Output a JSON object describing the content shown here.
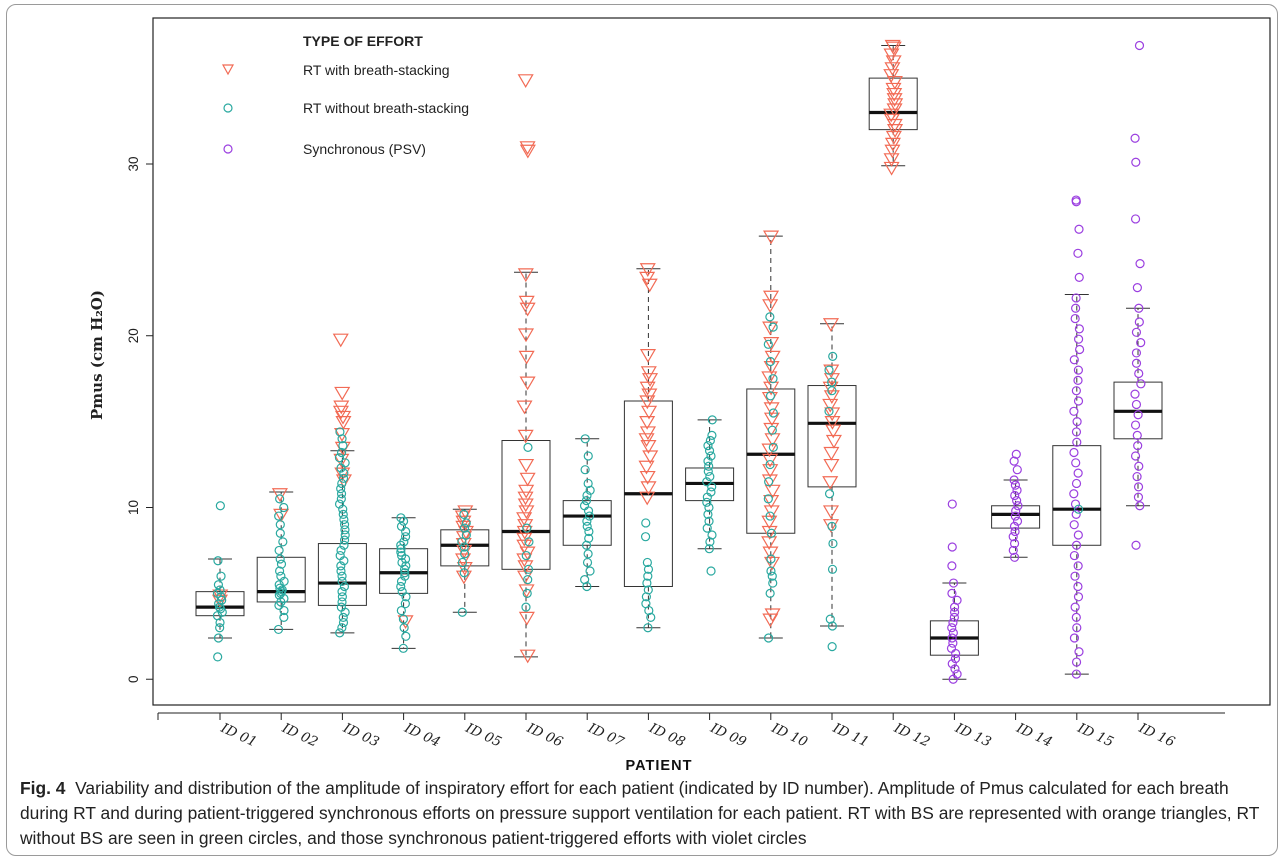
{
  "figure": {
    "label": "Fig. 4",
    "caption": "Variability and distribution of the amplitude of inspiratory effort for each patient (indicated by ID number). Amplitude of Pmus calculated for each breath during RT and during patient-triggered synchronous efforts on pressure support ventilation for each patient. RT with BS are represented with orange triangles, RT without BS are seen in green circles, and those synchronous patient-triggered efforts with violet circles"
  },
  "chart_data": {
    "type": "boxplot",
    "xlabel": "PATIENT",
    "ylabel": "Pmus (cm H₂O)",
    "ylim": [
      -1.5,
      38.5
    ],
    "yticks": [
      0,
      10,
      20,
      30
    ],
    "grid": false,
    "legend": {
      "placement": "top-left",
      "title": "TYPE OF EFFORT",
      "entries": [
        {
          "key": "rt_bs",
          "label": "RT with breath-stacking",
          "marker": "triangle-down",
          "color": "#f26b55"
        },
        {
          "key": "rt_nobs",
          "label": "RT without breath-stacking",
          "marker": "circle",
          "color": "#2aa9a0"
        },
        {
          "key": "psv",
          "label": "Synchronous (PSV)",
          "marker": "circle",
          "color": "#9b3fe0"
        }
      ]
    },
    "categories": [
      "ID 01",
      "ID 02",
      "ID 03",
      "ID 04",
      "ID 05",
      "ID 06",
      "ID 07",
      "ID 08",
      "ID 09",
      "ID 10",
      "ID 11",
      "ID 12",
      "ID 13",
      "ID 14",
      "ID 15",
      "ID 16"
    ],
    "boxes": [
      {
        "id": "ID 01",
        "whisker_low": 2.4,
        "q1": 3.7,
        "median": 4.2,
        "q3": 5.1,
        "whisker_high": 7.0
      },
      {
        "id": "ID 02",
        "whisker_low": 2.9,
        "q1": 4.5,
        "median": 5.1,
        "q3": 7.1,
        "whisker_high": 10.9
      },
      {
        "id": "ID 03",
        "whisker_low": 2.7,
        "q1": 4.3,
        "median": 5.6,
        "q3": 7.9,
        "whisker_high": 13.3
      },
      {
        "id": "ID 04",
        "whisker_low": 1.8,
        "q1": 5.0,
        "median": 6.2,
        "q3": 7.6,
        "whisker_high": 9.4
      },
      {
        "id": "ID 05",
        "whisker_low": 3.9,
        "q1": 6.6,
        "median": 7.8,
        "q3": 8.7,
        "whisker_high": 9.9
      },
      {
        "id": "ID 06",
        "whisker_low": 1.3,
        "q1": 6.4,
        "median": 8.6,
        "q3": 13.9,
        "whisker_high": 23.7
      },
      {
        "id": "ID 07",
        "whisker_low": 5.4,
        "q1": 7.8,
        "median": 9.5,
        "q3": 10.4,
        "whisker_high": 14.0
      },
      {
        "id": "ID 08",
        "whisker_low": 3.0,
        "q1": 5.4,
        "median": 10.8,
        "q3": 16.2,
        "whisker_high": 23.9
      },
      {
        "id": "ID 09",
        "whisker_low": 7.6,
        "q1": 10.4,
        "median": 11.4,
        "q3": 12.3,
        "whisker_high": 15.1
      },
      {
        "id": "ID 10",
        "whisker_low": 2.4,
        "q1": 8.5,
        "median": 13.1,
        "q3": 16.9,
        "whisker_high": 25.8
      },
      {
        "id": "ID 11",
        "whisker_low": 3.1,
        "q1": 11.2,
        "median": 14.9,
        "q3": 17.1,
        "whisker_high": 20.7
      },
      {
        "id": "ID 12",
        "whisker_low": 29.9,
        "q1": 32.0,
        "median": 33.0,
        "q3": 35.0,
        "whisker_high": 36.9
      },
      {
        "id": "ID 13",
        "whisker_low": 0.0,
        "q1": 1.4,
        "median": 2.4,
        "q3": 3.4,
        "whisker_high": 5.6
      },
      {
        "id": "ID 14",
        "whisker_low": 7.1,
        "q1": 8.8,
        "median": 9.6,
        "q3": 10.1,
        "whisker_high": 11.6
      },
      {
        "id": "ID 15",
        "whisker_low": 0.3,
        "q1": 7.8,
        "median": 9.9,
        "q3": 13.6,
        "whisker_high": 22.4
      },
      {
        "id": "ID 16",
        "whisker_low": 10.1,
        "q1": 14.0,
        "median": 15.6,
        "q3": 17.3,
        "whisker_high": 21.6
      }
    ],
    "points": [
      {
        "id": "ID 01",
        "group": "rt_bs",
        "values": [
          4.6,
          4.9
        ]
      },
      {
        "id": "ID 01",
        "group": "rt_nobs",
        "values": [
          1.3,
          2.4,
          3.0,
          3.3,
          3.7,
          3.9,
          4.1,
          4.2,
          4.4,
          4.6,
          4.8,
          5.0,
          5.2,
          5.5,
          6.0,
          6.9,
          10.1
        ]
      },
      {
        "id": "ID 02",
        "group": "rt_bs",
        "values": [
          9.6,
          10.8
        ]
      },
      {
        "id": "ID 02",
        "group": "rt_nobs",
        "values": [
          2.9,
          3.6,
          4.0,
          4.3,
          4.5,
          4.7,
          4.9,
          5.0,
          5.1,
          5.2,
          5.3,
          5.5,
          5.7,
          6.0,
          6.3,
          6.7,
          7.0,
          7.5,
          8.0,
          8.5,
          9.0,
          9.5,
          10.0,
          10.5
        ]
      },
      {
        "id": "ID 03",
        "group": "rt_bs",
        "values": [
          11.6,
          12.0,
          12.8,
          13.5,
          14.3,
          15.0,
          15.3,
          15.6,
          15.9,
          16.7,
          19.8
        ]
      },
      {
        "id": "ID 03",
        "group": "rt_nobs",
        "values": [
          2.7,
          3.0,
          3.3,
          3.6,
          3.9,
          4.2,
          4.5,
          4.8,
          5.1,
          5.4,
          5.7,
          6.0,
          6.3,
          6.6,
          6.9,
          7.2,
          7.5,
          7.8,
          8.1,
          8.4,
          8.7,
          9.0,
          9.3,
          9.6,
          9.9,
          10.2,
          10.5,
          10.8,
          11.1,
          11.4,
          11.7,
          12.0,
          12.3,
          12.6,
          12.9,
          13.2,
          13.6,
          14.0,
          14.4
        ]
      },
      {
        "id": "ID 04",
        "group": "rt_bs",
        "values": [
          3.4
        ]
      },
      {
        "id": "ID 04",
        "group": "rt_nobs",
        "values": [
          1.8,
          2.5,
          3.0,
          3.5,
          4.0,
          4.4,
          4.8,
          5.1,
          5.4,
          5.7,
          6.0,
          6.2,
          6.4,
          6.6,
          6.8,
          7.0,
          7.2,
          7.4,
          7.6,
          7.8,
          8.0,
          8.3,
          8.6,
          8.9,
          9.2,
          9.4
        ]
      },
      {
        "id": "ID 05",
        "group": "rt_bs",
        "values": [
          6.0,
          6.5,
          7.0,
          7.5,
          7.9,
          8.3,
          8.6,
          8.9,
          9.2,
          9.5,
          9.8
        ]
      },
      {
        "id": "ID 05",
        "group": "rt_nobs",
        "values": [
          3.9,
          6.2,
          6.8,
          7.3,
          7.7,
          8.0,
          8.4,
          8.8,
          9.1,
          9.6
        ]
      },
      {
        "id": "ID 06",
        "group": "rt_bs",
        "values": [
          1.4,
          3.6,
          5.2,
          6.0,
          6.6,
          7.0,
          7.4,
          7.8,
          8.2,
          8.6,
          9.0,
          9.4,
          9.8,
          10.2,
          10.6,
          11.0,
          11.7,
          12.5,
          14.2,
          15.9,
          17.3,
          18.8,
          20.1,
          21.6,
          22.0,
          23.6,
          30.8,
          31.0,
          34.9
        ]
      },
      {
        "id": "ID 06",
        "group": "rt_nobs",
        "values": [
          4.2,
          5.0,
          5.8,
          6.4,
          7.2,
          8.0,
          8.8,
          13.5
        ]
      },
      {
        "id": "ID 07",
        "group": "rt_nobs",
        "values": [
          5.4,
          5.8,
          6.3,
          6.8,
          7.3,
          7.8,
          8.2,
          8.6,
          8.9,
          9.2,
          9.5,
          9.8,
          10.1,
          10.4,
          10.7,
          11.0,
          11.4,
          12.2,
          13.0,
          14.0
        ]
      },
      {
        "id": "ID 08",
        "group": "rt_bs",
        "values": [
          10.6,
          11.2,
          11.8,
          12.4,
          13.0,
          13.6,
          14.0,
          14.4,
          15.0,
          15.6,
          16.2,
          16.6,
          17.0,
          17.5,
          17.9,
          18.9,
          23.0,
          23.4,
          23.9
        ]
      },
      {
        "id": "ID 08",
        "group": "rt_nobs",
        "values": [
          3.0,
          3.6,
          4.0,
          4.4,
          4.8,
          5.2,
          5.6,
          6.0,
          6.4,
          6.8,
          8.3,
          9.1
        ]
      },
      {
        "id": "ID 09",
        "group": "rt_nobs",
        "values": [
          6.3,
          7.6,
          8.0,
          8.4,
          8.8,
          9.2,
          9.6,
          10.0,
          10.3,
          10.6,
          10.9,
          11.2,
          11.5,
          11.8,
          12.1,
          12.4,
          12.7,
          13.0,
          13.3,
          13.6,
          13.9,
          14.2,
          15.1
        ]
      },
      {
        "id": "ID 10",
        "group": "rt_bs",
        "values": [
          3.5,
          3.8,
          6.8,
          7.4,
          8.0,
          8.6,
          9.2,
          9.8,
          10.4,
          11.0,
          11.6,
          12.2,
          12.8,
          13.4,
          14.0,
          14.6,
          15.2,
          15.8,
          16.4,
          17.0,
          17.6,
          18.2,
          18.8,
          19.6,
          20.5,
          21.8,
          22.3,
          25.8
        ]
      },
      {
        "id": "ID 10",
        "group": "rt_nobs",
        "values": [
          2.4,
          5.0,
          5.6,
          6.0,
          6.3,
          7.0,
          8.5,
          9.5,
          10.5,
          11.5,
          12.5,
          13.5,
          14.5,
          15.5,
          16.5,
          17.5,
          18.5,
          19.5,
          20.5,
          21.1
        ]
      },
      {
        "id": "ID 11",
        "group": "rt_bs",
        "values": [
          9.0,
          9.8,
          11.5,
          12.5,
          13.2,
          13.9,
          14.5,
          15.0,
          15.5,
          16.0,
          16.5,
          17.0,
          17.5,
          18.0,
          20.7
        ]
      },
      {
        "id": "ID 11",
        "group": "rt_nobs",
        "values": [
          1.9,
          3.1,
          3.5,
          6.4,
          7.9,
          8.9,
          10.8,
          15.6,
          16.8,
          17.3,
          18.0,
          18.8
        ]
      },
      {
        "id": "ID 12",
        "group": "rt_bs",
        "values": [
          29.8,
          30.3,
          30.8,
          31.2,
          31.6,
          32.0,
          32.3,
          32.6,
          32.9,
          33.2,
          33.5,
          33.8,
          34.1,
          34.4,
          34.8,
          35.2,
          35.6,
          36.0,
          36.4,
          36.8,
          36.9
        ]
      },
      {
        "id": "ID 13",
        "group": "psv",
        "values": [
          0.0,
          0.3,
          0.6,
          0.9,
          1.2,
          1.5,
          1.8,
          2.1,
          2.4,
          2.7,
          3.0,
          3.3,
          3.6,
          3.9,
          4.2,
          4.6,
          5.0,
          5.6,
          6.6,
          7.7,
          10.2
        ]
      },
      {
        "id": "ID 14",
        "group": "psv",
        "values": [
          7.1,
          7.5,
          7.9,
          8.3,
          8.6,
          8.9,
          9.2,
          9.5,
          9.8,
          10.1,
          10.4,
          10.7,
          11.0,
          11.3,
          11.6,
          12.2,
          12.7,
          13.1
        ]
      },
      {
        "id": "ID 15",
        "group": "psv",
        "values": [
          0.3,
          1.0,
          1.6,
          2.4,
          3.0,
          3.6,
          4.2,
          4.8,
          5.4,
          6.0,
          6.6,
          7.2,
          7.8,
          8.4,
          9.0,
          9.6,
          10.2,
          10.8,
          11.4,
          12.0,
          12.6,
          13.2,
          13.8,
          14.4,
          15.0,
          15.6,
          16.2,
          16.8,
          17.4,
          18.0,
          18.6,
          19.2,
          19.8,
          20.4,
          21.0,
          21.6,
          22.2,
          23.4,
          24.8,
          26.2,
          27.8,
          27.9
        ]
      },
      {
        "id": "ID 15",
        "group": "rt_nobs",
        "values": [
          9.9
        ]
      },
      {
        "id": "ID 16",
        "group": "psv",
        "values": [
          7.8,
          10.1,
          10.6,
          11.2,
          11.8,
          12.4,
          13.0,
          13.6,
          14.2,
          14.8,
          15.4,
          16.0,
          16.6,
          17.2,
          17.8,
          18.4,
          19.0,
          19.6,
          20.2,
          20.8,
          21.6,
          22.8,
          24.2,
          26.8,
          30.1,
          31.5,
          36.9
        ]
      }
    ]
  }
}
